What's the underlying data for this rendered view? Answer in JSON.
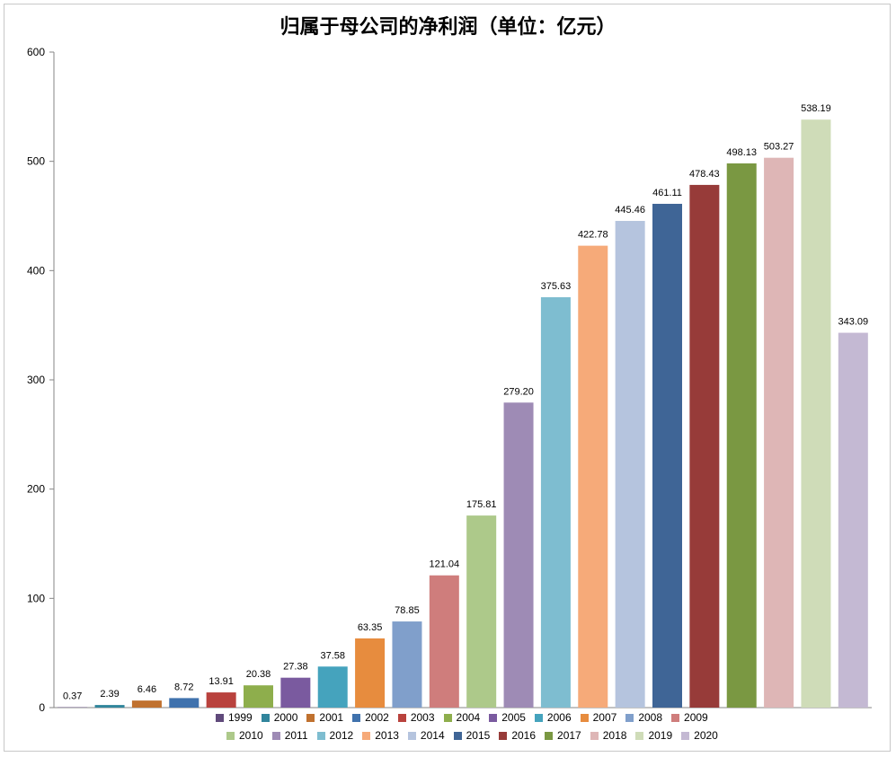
{
  "chart_data": {
    "type": "bar",
    "title": "归属于母公司的净利润（单位：亿元）",
    "xlabel": "",
    "ylabel": "",
    "ylim": [
      0,
      600
    ],
    "yticks": [
      0,
      100,
      200,
      300,
      400,
      500,
      600
    ],
    "grid": false,
    "legend_position": "bottom",
    "categories": [
      "1999",
      "2000",
      "2001",
      "2002",
      "2003",
      "2004",
      "2005",
      "2006",
      "2007",
      "2008",
      "2009",
      "2010",
      "2011",
      "2012",
      "2013",
      "2014",
      "2015",
      "2016",
      "2017",
      "2018",
      "2019",
      "2020"
    ],
    "values": [
      0.37,
      2.39,
      6.46,
      8.72,
      13.91,
      20.38,
      27.38,
      37.58,
      63.35,
      78.85,
      121.04,
      175.81,
      279.2,
      375.63,
      422.78,
      445.46,
      461.11,
      478.43,
      498.13,
      503.27,
      538.19,
      343.09
    ],
    "labels": [
      "0.37",
      "2.39",
      "6.46",
      "8.72",
      "13.91",
      "20.38",
      "27.38",
      "37.58",
      "63.35",
      "78.85",
      "121.04",
      "175.81",
      "279.20",
      "375.63",
      "422.78",
      "445.46",
      "461.11",
      "478.43",
      "498.13",
      "503.27",
      "538.19",
      "343.09"
    ],
    "colors": [
      "#604a7b",
      "#31859c",
      "#c0712f",
      "#4072ad",
      "#b9423d",
      "#8eae4c",
      "#7a5a9f",
      "#45a3bd",
      "#e78c3e",
      "#809fcb",
      "#cf7d7c",
      "#adc98a",
      "#9e8bb5",
      "#7ebdd0",
      "#f6aa79",
      "#b5c4de",
      "#3f6596",
      "#973b39",
      "#7a9842",
      "#deb6b6",
      "#cfdcb8",
      "#c4b9d3"
    ]
  }
}
